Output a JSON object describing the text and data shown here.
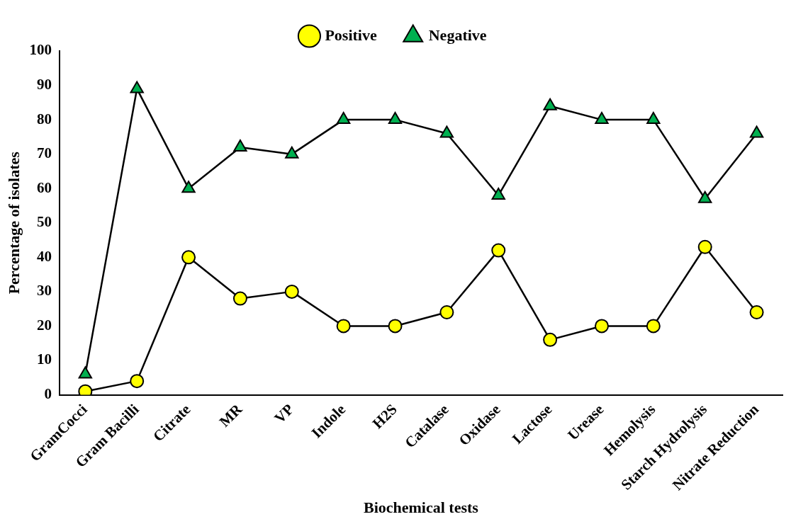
{
  "chart_data": {
    "type": "line",
    "xlabel": "Biochemical tests",
    "ylabel": "Percentage of isolates",
    "categories": [
      "GramCocci",
      "Gram Bacilli",
      "Citrate",
      "MR",
      "VP",
      "Indole",
      "H2S",
      "Catalase",
      "Oxidase",
      "Lactose",
      "Urease",
      "Hemolysis",
      "Starch Hydrolysis",
      "Nitrate Reduction"
    ],
    "series": [
      {
        "name": "Positive",
        "color": "#ffff00",
        "marker": "circle",
        "values": [
          1,
          4,
          40,
          28,
          30,
          20,
          20,
          24,
          42,
          16,
          20,
          20,
          43,
          24
        ]
      },
      {
        "name": "Negative",
        "color": "#00b050",
        "marker": "triangle",
        "values": [
          6,
          89,
          60,
          72,
          70,
          80,
          80,
          76,
          58,
          84,
          80,
          80,
          57,
          76
        ]
      }
    ],
    "ylim": [
      0,
      100
    ],
    "yticks": [
      0,
      10,
      20,
      30,
      40,
      50,
      60,
      70,
      80,
      90,
      100
    ],
    "grid": false,
    "legend": "top",
    "line_style": "solid"
  }
}
